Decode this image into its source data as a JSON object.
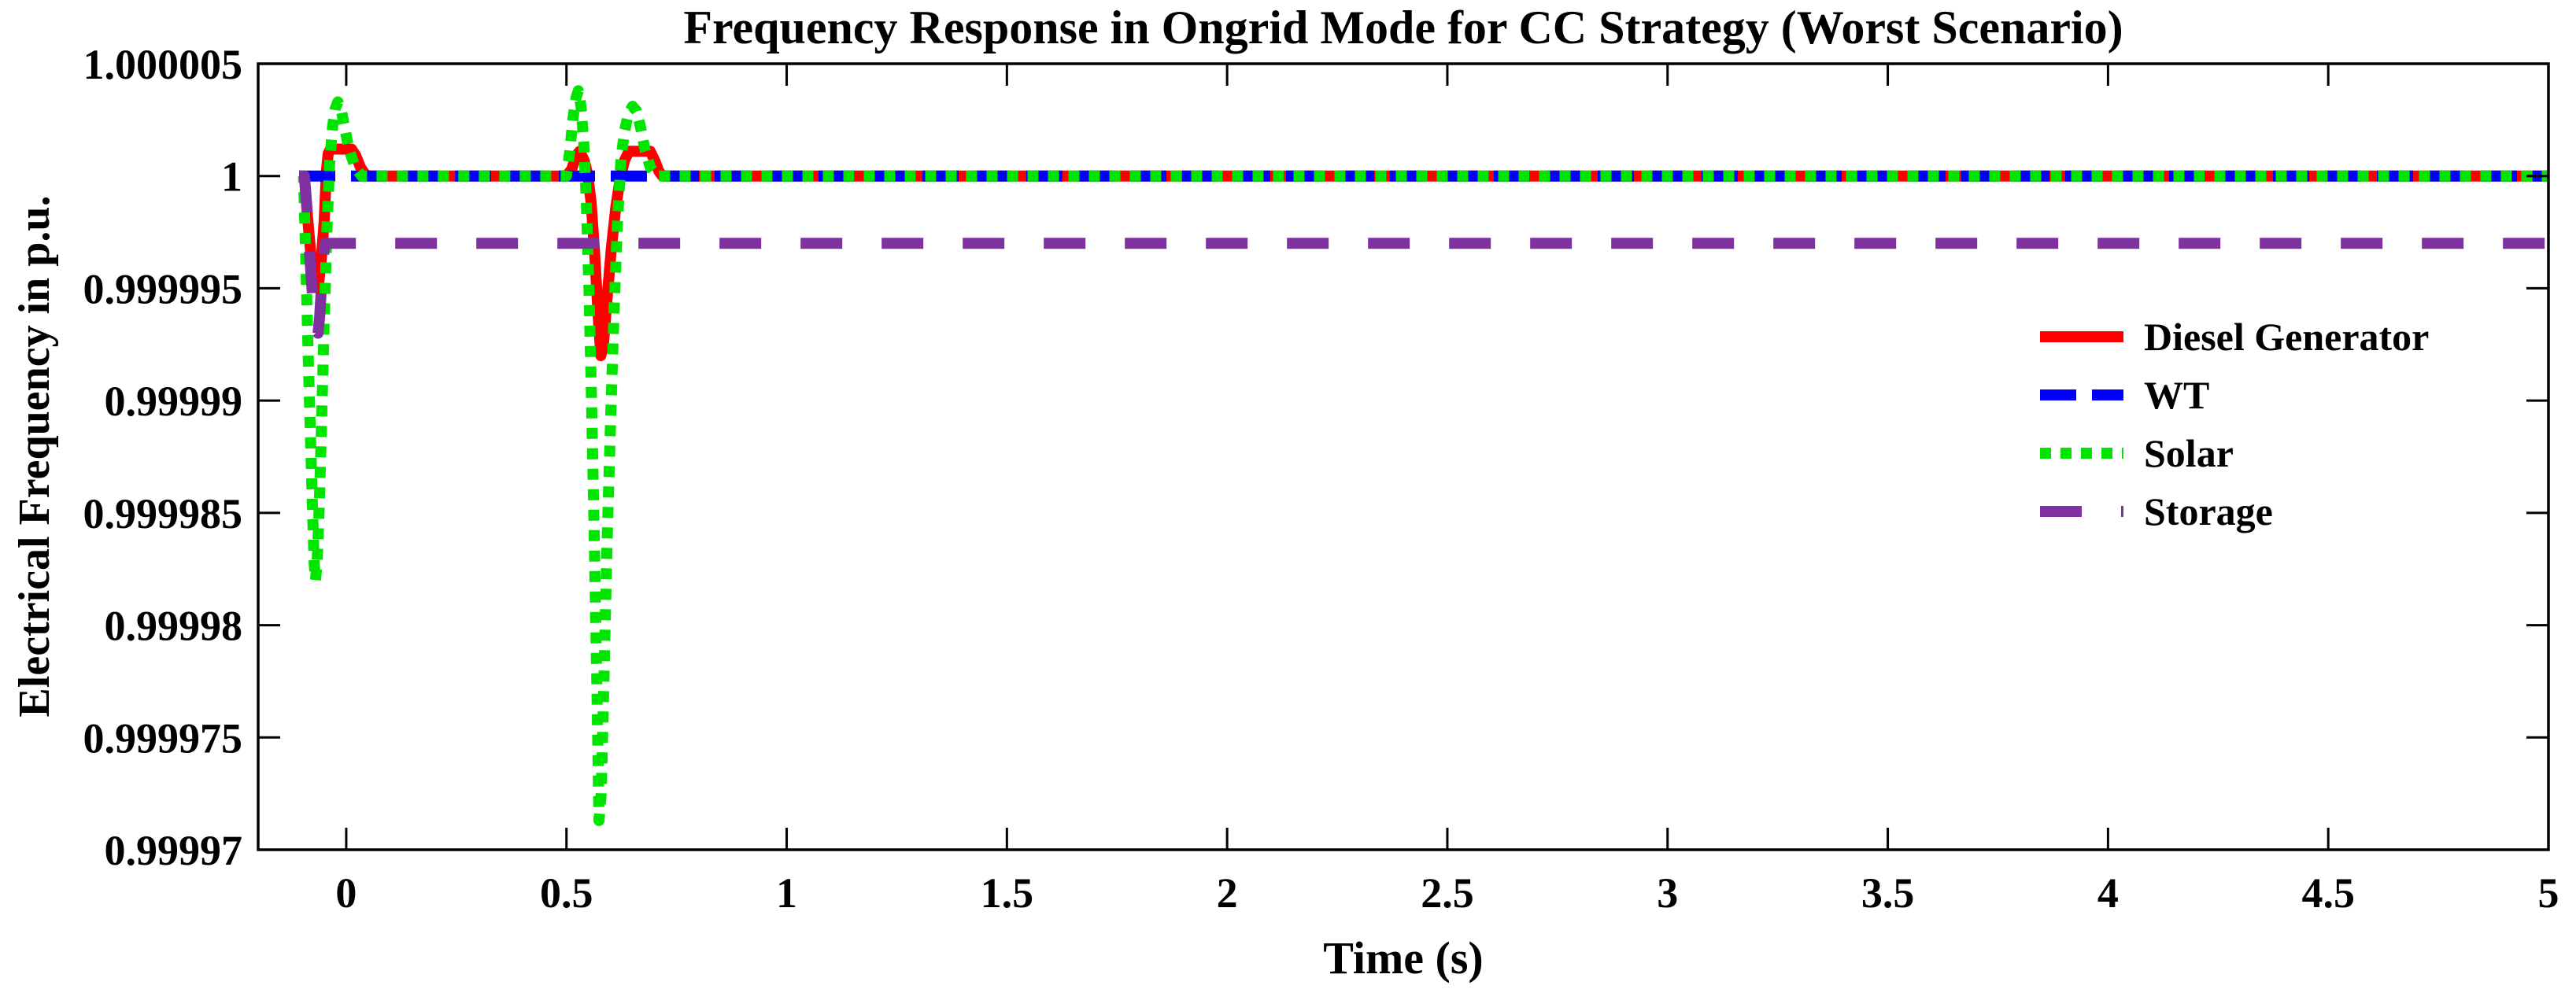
{
  "figure": {
    "background": "#ffffff"
  },
  "chart_data": {
    "type": "line",
    "title": "Frequency Response in Ongrid Mode for CC Strategy (Worst Scenario)",
    "xlabel": "Time (s)",
    "ylabel": "Electrical Frequency in p.u.",
    "xlim": [
      -0.2,
      5
    ],
    "ylim": [
      0.99997,
      1.000005
    ],
    "xticks": [
      0,
      0.5,
      1,
      1.5,
      2,
      2.5,
      3,
      3.5,
      4,
      4.5,
      5
    ],
    "xtick_labels": [
      "0",
      "0.5",
      "1",
      "1.5",
      "2",
      "2.5",
      "3",
      "3.5",
      "4",
      "4.5",
      "5"
    ],
    "yticks": [
      1.000005,
      1,
      0.999995,
      0.99999,
      0.999985,
      0.99998,
      0.999975,
      0.99997
    ],
    "ytick_labels": [
      "1.000005",
      "1",
      "0.999995",
      "0.99999",
      "0.999985",
      "0.99998",
      "0.999975",
      "0.99997"
    ],
    "grid": false,
    "axis_color": "#000000",
    "legend": {
      "position": "inside-right",
      "border": "none"
    },
    "series": [
      {
        "name": "Diesel Generator",
        "color": "#ff0000",
        "line_style": "solid",
        "steady_state": 1.0,
        "points": [
          [
            -0.107,
            1
          ],
          [
            -0.095,
            1
          ],
          [
            -0.088,
            0.9999982
          ],
          [
            -0.079,
            0.9999962
          ],
          [
            -0.071,
            0.9999952
          ],
          [
            -0.064,
            0.999995
          ],
          [
            -0.057,
            0.9999962
          ],
          [
            -0.05,
            0.999998
          ],
          [
            -0.045,
            1.0000002
          ],
          [
            -0.041,
            1.000001
          ],
          [
            -0.036,
            1.0000012
          ],
          [
            0.012,
            1.0000012
          ],
          [
            0.022,
            1.0000009
          ],
          [
            0.032,
            1.0000004
          ],
          [
            0.042,
            1.0000001
          ],
          [
            0.05,
            1
          ],
          [
            0.5,
            1
          ],
          [
            0.512,
            1.0000003
          ],
          [
            0.522,
            1.0000009
          ],
          [
            0.53,
            1.0000011
          ],
          [
            0.54,
            1.0000007
          ],
          [
            0.548,
            1.0000001
          ],
          [
            0.556,
            0.9999988
          ],
          [
            0.564,
            0.9999966
          ],
          [
            0.572,
            0.9999938
          ],
          [
            0.578,
            0.999992
          ],
          [
            0.584,
            0.9999925
          ],
          [
            0.592,
            0.9999945
          ],
          [
            0.602,
            0.9999968
          ],
          [
            0.612,
            0.9999986
          ],
          [
            0.622,
            0.9999999
          ],
          [
            0.632,
            1.0000007
          ],
          [
            0.642,
            1.0000011
          ],
          [
            0.69,
            1.0000011
          ],
          [
            0.7,
            1.0000007
          ],
          [
            0.71,
            1.0000002
          ],
          [
            0.718,
            1
          ],
          [
            5,
            1
          ]
        ]
      },
      {
        "name": "WT",
        "color": "#0000ff",
        "line_style": "dashed",
        "steady_state": 1.0,
        "points": [
          [
            -0.107,
            1
          ],
          [
            5,
            1
          ]
        ]
      },
      {
        "name": "Solar",
        "color": "#00e400",
        "line_style": "dotted",
        "steady_state": 1.0,
        "points": [
          [
            -0.107,
            1
          ],
          [
            -0.097,
            1
          ],
          [
            -0.092,
            0.9999965
          ],
          [
            -0.087,
            0.9999925
          ],
          [
            -0.082,
            0.999989
          ],
          [
            -0.077,
            0.9999855
          ],
          [
            -0.073,
            0.9999828
          ],
          [
            -0.07,
            0.999982
          ],
          [
            -0.066,
            0.9999828
          ],
          [
            -0.061,
            0.9999855
          ],
          [
            -0.056,
            0.999989
          ],
          [
            -0.05,
            0.9999935
          ],
          [
            -0.044,
            0.9999975
          ],
          [
            -0.038,
            1.0000005
          ],
          [
            -0.031,
            1.0000022
          ],
          [
            -0.025,
            1.000003
          ],
          [
            -0.019,
            1.0000033
          ],
          [
            -0.012,
            1.000003
          ],
          [
            -0.004,
            1.0000022
          ],
          [
            0.006,
            1.0000012
          ],
          [
            0.02,
            1.0000004
          ],
          [
            0.035,
            1
          ],
          [
            0.05,
            1
          ],
          [
            0.5,
            1
          ],
          [
            0.507,
            1.000001
          ],
          [
            0.515,
            1.0000026
          ],
          [
            0.522,
            1.0000035
          ],
          [
            0.527,
            1.0000038
          ],
          [
            0.533,
            1.0000031
          ],
          [
            0.539,
            1.0000015
          ],
          [
            0.545,
            0.999999
          ],
          [
            0.551,
            0.999995
          ],
          [
            0.557,
            0.99999
          ],
          [
            0.563,
            0.999984
          ],
          [
            0.569,
            0.9999775
          ],
          [
            0.574,
            0.9999713
          ],
          [
            0.579,
            0.9999725
          ],
          [
            0.585,
            0.9999775
          ],
          [
            0.592,
            0.9999835
          ],
          [
            0.6,
            0.999989
          ],
          [
            0.608,
            0.999994
          ],
          [
            0.616,
            0.999998
          ],
          [
            0.624,
            1.0000008
          ],
          [
            0.632,
            1.000002
          ],
          [
            0.641,
            1.0000028
          ],
          [
            0.65,
            1.0000031
          ],
          [
            0.659,
            1.0000029
          ],
          [
            0.668,
            1.0000022
          ],
          [
            0.678,
            1.0000012
          ],
          [
            0.69,
            1.0000004
          ],
          [
            0.705,
            1
          ],
          [
            5,
            1
          ]
        ]
      },
      {
        "name": "Storage",
        "color": "#8031a0",
        "line_style": "longdash",
        "steady_state": 0.999997,
        "points": [
          [
            -0.107,
            1
          ],
          [
            -0.095,
            1
          ],
          [
            -0.089,
            0.9999985
          ],
          [
            -0.082,
            0.9999962
          ],
          [
            -0.075,
            0.9999942
          ],
          [
            -0.069,
            0.9999931
          ],
          [
            -0.064,
            0.999993
          ],
          [
            -0.06,
            0.9999938
          ],
          [
            -0.056,
            0.9999952
          ],
          [
            -0.052,
            0.9999964
          ],
          [
            -0.048,
            0.999997
          ],
          [
            5,
            0.999997
          ]
        ]
      }
    ]
  }
}
